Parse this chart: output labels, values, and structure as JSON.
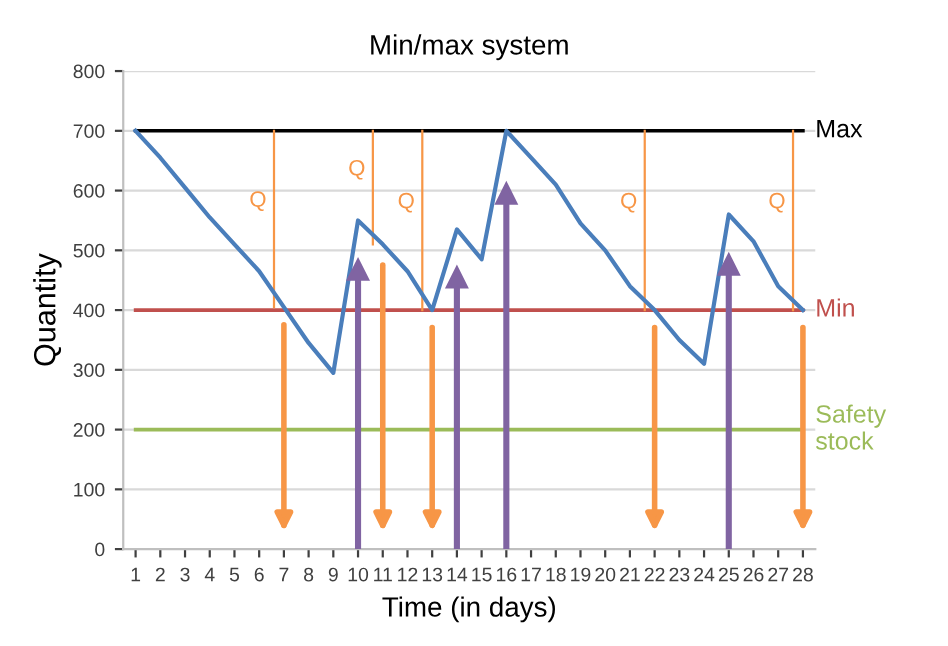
{
  "chart_data": {
    "type": "line",
    "title": "Min/max system",
    "xlabel": "Time (in days)",
    "ylabel": "Quantity",
    "categories": [
      "1",
      "2",
      "3",
      "4",
      "5",
      "6",
      "7",
      "8",
      "9",
      "10",
      "11",
      "12",
      "13",
      "14",
      "15",
      "16",
      "17",
      "18",
      "19",
      "20",
      "21",
      "22",
      "23",
      "24",
      "25",
      "26",
      "27",
      "28"
    ],
    "series": [
      {
        "color": "#4a7ebb",
        "values": [
          700,
          655,
          605,
          555,
          510,
          465,
          405,
          345,
          295,
          550,
          510,
          465,
          400,
          535,
          485,
          700,
          655,
          610,
          545,
          500,
          440,
          400,
          350,
          310,
          560,
          515,
          440,
          400
        ]
      }
    ],
    "ylim": [
      0,
      800
    ],
    "yticks": [
      0,
      100,
      200,
      300,
      400,
      500,
      600,
      700,
      800
    ],
    "grid": "y",
    "legend": false,
    "marker": "none",
    "line_style": "solid",
    "ref_lines": [
      {
        "axis": "y",
        "value": 700,
        "label": "Max",
        "color": "#000000"
      },
      {
        "axis": "y",
        "value": 400,
        "label": "Min",
        "color": "#c0504d"
      },
      {
        "axis": "y",
        "value": 200,
        "label": "Safety stock",
        "color": "#9bbb59"
      },
      {
        "axis": "x",
        "value": "7",
        "color": "#f79646"
      },
      {
        "axis": "x",
        "value": "10",
        "color": "#8064a2"
      },
      {
        "axis": "x",
        "value": "11",
        "color": "#f79646"
      },
      {
        "axis": "x",
        "value": "13",
        "color": "#f79646"
      },
      {
        "axis": "x",
        "value": "14",
        "color": "#8064a2"
      },
      {
        "axis": "x",
        "value": "16",
        "color": "#8064a2"
      },
      {
        "axis": "x",
        "value": "22",
        "color": "#f79646"
      },
      {
        "axis": "x",
        "value": "25",
        "color": "#8064a2"
      },
      {
        "axis": "x",
        "value": "28",
        "color": "#f79646"
      }
    ],
    "annotations": [
      "Q",
      "Q",
      "Q",
      "Q",
      "Q"
    ]
  }
}
